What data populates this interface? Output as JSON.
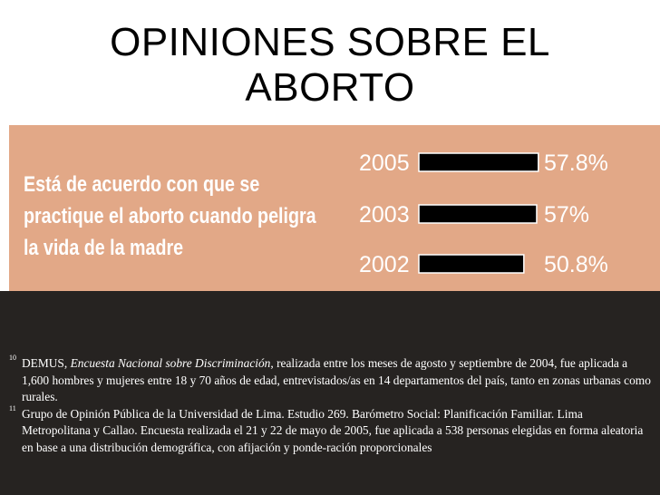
{
  "slide": {
    "title_lines": [
      "OPINIONES SOBRE EL",
      "ABORTO"
    ]
  },
  "statement_lines": [
    "Está de acuerdo con que se",
    "practique el aborto cuando peligra",
    "la vida de la madre"
  ],
  "chart_data": {
    "type": "bar",
    "orientation": "horizontal",
    "categories": [
      "2005",
      "2003",
      "2002"
    ],
    "values": [
      57.8,
      57,
      50.8
    ],
    "value_labels": [
      "57.8%",
      "57%",
      "50.8%"
    ],
    "title": "",
    "xlabel": "",
    "ylabel": "",
    "xlim": [
      0,
      100
    ],
    "grid": false,
    "legend": "none",
    "bar_color": "#000000",
    "panel_color": "#e2a887",
    "text_color": "#ffffff"
  },
  "footnotes": [
    {
      "number": "10",
      "prefix": "DEMUS, ",
      "source": "Encuesta Nacional sobre Discriminación",
      "text": ", realizada entre los meses de agosto y septiembre de 2004, fue aplicada a 1,600 hombres y mujeres entre 18 y 70 años de edad, entrevistados/as en 14 departamentos del país, tanto en zonas urbanas como rurales."
    },
    {
      "number": "11",
      "prefix": "Grupo de Opinión Pública de la Universidad de Lima. Estudio 269. Barómetro Social: Planificación Familiar. Lima Metropolitana y Callao. Encuesta realizada el 21 y 22 de mayo de 2005, fue aplicada a 538 personas elegidas en forma aleatoria en base a una distribución demográfica, con afijación y ponde-ración proporcionales",
      "source": "",
      "text": ""
    }
  ]
}
